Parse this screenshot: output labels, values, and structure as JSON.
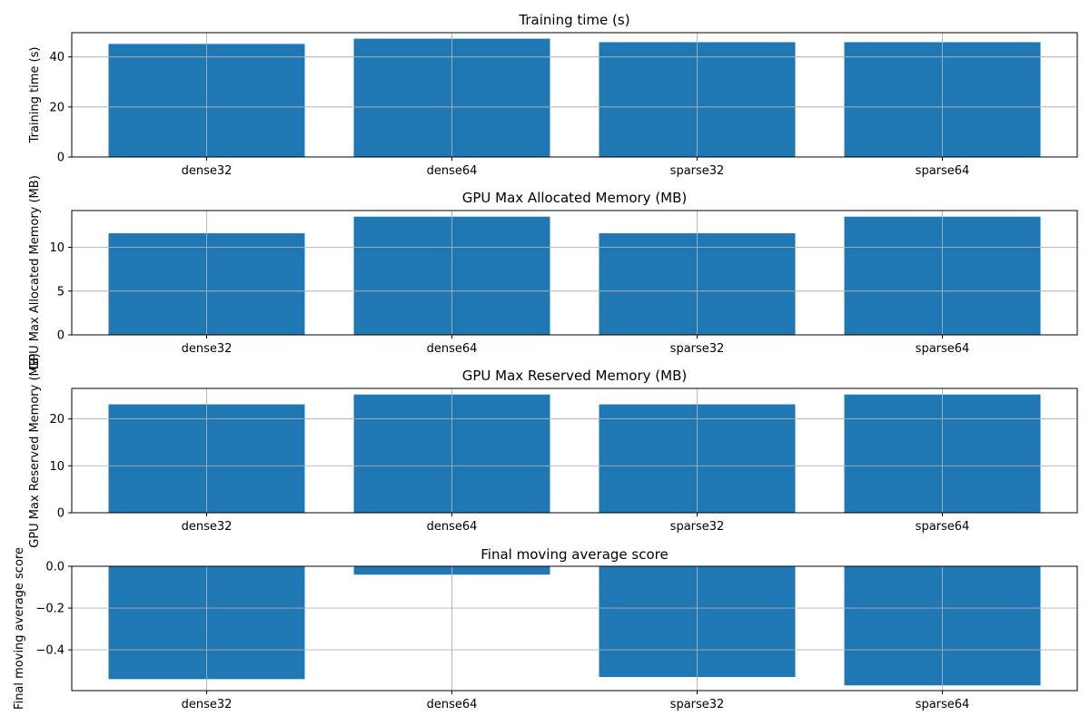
{
  "figure": {
    "background": "#ffffff",
    "bar_color": "#1f77b4",
    "grid_color": "#b0b0b0",
    "axis_color": "#000000"
  },
  "chart_data": [
    {
      "type": "bar",
      "title": "Training time (s)",
      "ylabel": "Training time (s)",
      "categories": [
        "dense32",
        "dense64",
        "sparse32",
        "sparse64"
      ],
      "values": [
        45.2,
        47.3,
        45.9,
        45.9
      ],
      "ylim": [
        0,
        49.7
      ],
      "yticks": [
        0,
        20,
        40
      ],
      "ytick_labels": [
        "0",
        "20",
        "40"
      ],
      "grid": true
    },
    {
      "type": "bar",
      "title": "GPU Max Allocated Memory (MB)",
      "ylabel": "GPU Max Allocated Memory (MB)",
      "categories": [
        "dense32",
        "dense64",
        "sparse32",
        "sparse64"
      ],
      "values": [
        11.6,
        13.5,
        11.6,
        13.5
      ],
      "ylim": [
        0,
        14.2
      ],
      "yticks": [
        0,
        5,
        10
      ],
      "ytick_labels": [
        "0",
        "5",
        "10"
      ],
      "grid": true
    },
    {
      "type": "bar",
      "title": "GPU Max Reserved Memory (MB)",
      "ylabel": "GPU Max Reserved Memory (MB)",
      "categories": [
        "dense32",
        "dense64",
        "sparse32",
        "sparse64"
      ],
      "values": [
        23.1,
        25.2,
        23.1,
        25.2
      ],
      "ylim": [
        0,
        26.5
      ],
      "yticks": [
        0,
        10,
        20
      ],
      "ytick_labels": [
        "0",
        "10",
        "20"
      ],
      "grid": true
    },
    {
      "type": "bar",
      "title": "Final moving average score",
      "ylabel": "Final moving average score",
      "categories": [
        "dense32",
        "dense64",
        "sparse32",
        "sparse64"
      ],
      "values": [
        -0.54,
        -0.04,
        -0.53,
        -0.57
      ],
      "ylim": [
        -0.595,
        0
      ],
      "yticks": [
        0,
        -0.2,
        -0.4
      ],
      "ytick_labels": [
        "0.0",
        "−0.2",
        "−0.4"
      ],
      "grid": true
    }
  ]
}
